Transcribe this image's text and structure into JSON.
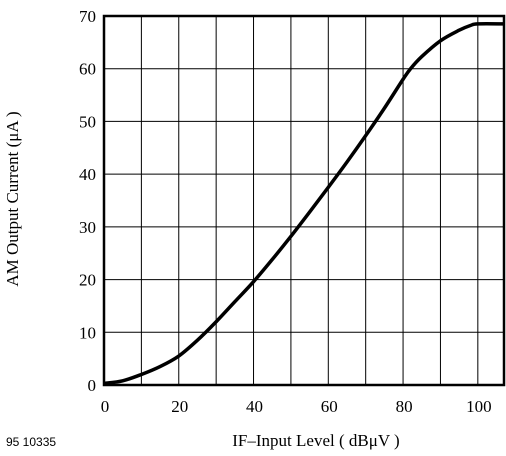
{
  "chart_data": {
    "type": "line",
    "figure_id": "95 10335",
    "xlabel": "IF–Input Level ( dBμV )",
    "ylabel": "AM Output Current (μA )",
    "xlim": [
      0,
      107
    ],
    "ylim": [
      0,
      70
    ],
    "xticks": [
      0,
      20,
      40,
      60,
      80,
      100
    ],
    "yticks": [
      0,
      10,
      20,
      30,
      40,
      50,
      60,
      70
    ],
    "grid": true,
    "colors": {
      "line": "#000000",
      "grid": "#000000",
      "frame": "#000000"
    },
    "series": [
      {
        "x": [
          0,
          5,
          10,
          15,
          20,
          25,
          30,
          35,
          40,
          45,
          50,
          55,
          60,
          65,
          70,
          75,
          80,
          82,
          85,
          90,
          95,
          98,
          100,
          107
        ],
        "y": [
          0.3,
          0.8,
          2.0,
          3.5,
          5.5,
          8.5,
          12,
          15.8,
          19.6,
          23.8,
          28.2,
          32.8,
          37.5,
          42.3,
          47.3,
          52.5,
          58,
          60,
          62.3,
          65.3,
          67.3,
          68.2,
          68.5,
          68.5
        ]
      }
    ]
  }
}
